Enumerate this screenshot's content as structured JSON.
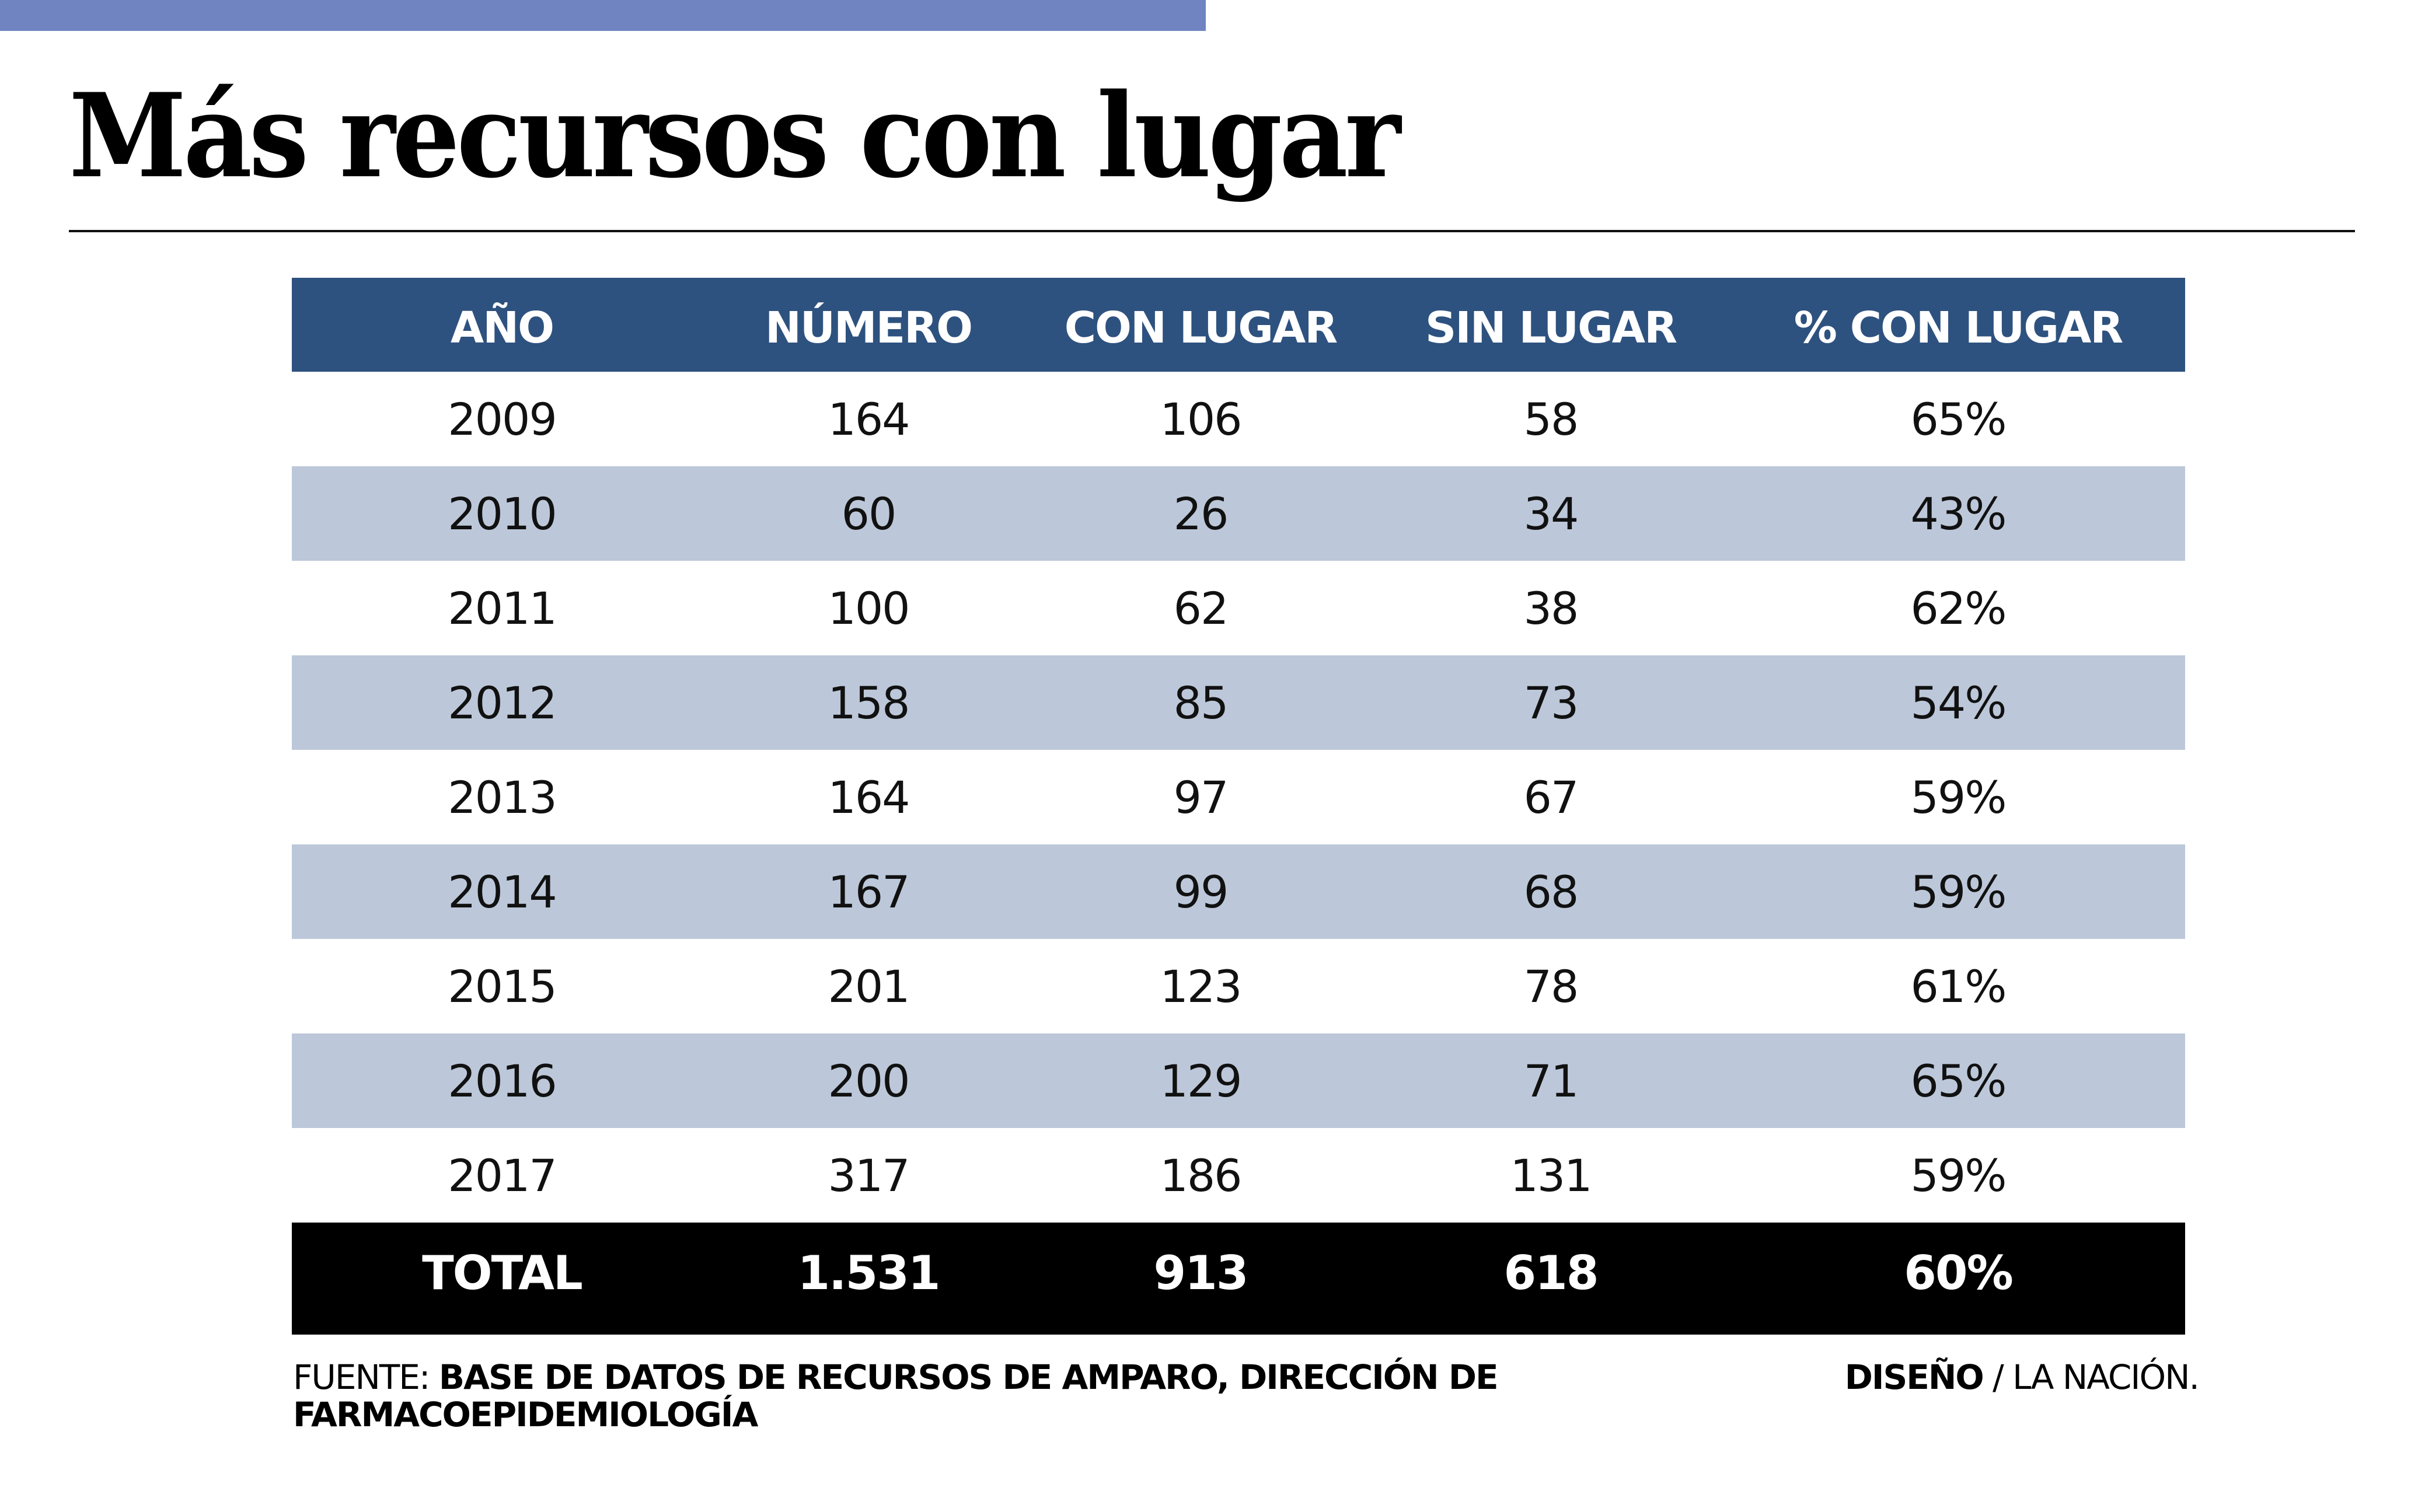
{
  "colors": {
    "top_bar": "#6f84c1",
    "header_bg": "#2e527f",
    "alt_row_bg": "#bcc8d9",
    "total_bg": "#000000",
    "text": "#000000"
  },
  "title": "Más recursos con lugar",
  "chart_data": {
    "type": "table",
    "title": "Más recursos con lugar",
    "columns": [
      "AÑO",
      "NÚMERO",
      "CON LUGAR",
      "SIN LUGAR",
      "% CON LUGAR"
    ],
    "rows": [
      [
        "2009",
        "164",
        "106",
        "58",
        "65%"
      ],
      [
        "2010",
        "60",
        "26",
        "34",
        "43%"
      ],
      [
        "2011",
        "100",
        "62",
        "38",
        "62%"
      ],
      [
        "2012",
        "158",
        "85",
        "73",
        "54%"
      ],
      [
        "2013",
        "164",
        "97",
        "67",
        "59%"
      ],
      [
        "2014",
        "167",
        "99",
        "68",
        "59%"
      ],
      [
        "2015",
        "201",
        "123",
        "78",
        "61%"
      ],
      [
        "2016",
        "200",
        "129",
        "71",
        "65%"
      ],
      [
        "2017",
        "317",
        "186",
        "131",
        "59%"
      ]
    ],
    "total": [
      "TOTAL",
      "1.531",
      "913",
      "618",
      "60%"
    ]
  },
  "footer": {
    "source_label": "FUENTE: ",
    "source_value": "BASE DE DATOS DE RECURSOS DE AMPARO, DIRECCIÓN DE FARMACOEPIDEMIOLOGÍA",
    "credit_label": "DISEÑO",
    "credit_sep": " / ",
    "credit_value": "LA NACIÓN."
  }
}
